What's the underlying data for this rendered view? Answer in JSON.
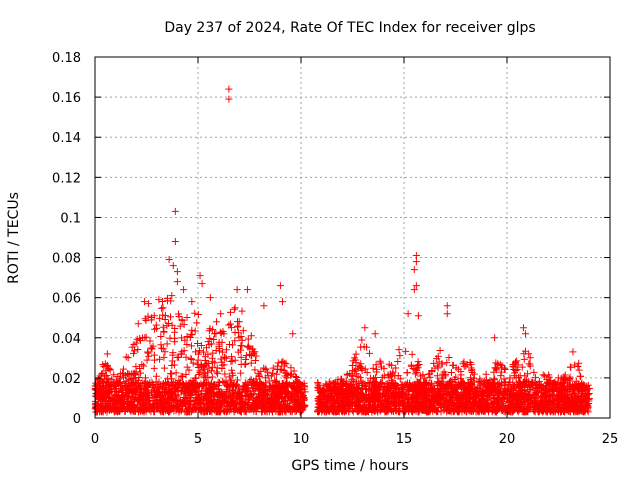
{
  "chart_data": {
    "type": "scatter",
    "title": "Day 237 of 2024, Rate Of TEC Index for receiver glps",
    "xlabel": "GPS time / hours",
    "ylabel": "ROTI / TECUs",
    "xlim": [
      0,
      25
    ],
    "ylim": [
      0,
      0.18
    ],
    "xticks": [
      0,
      5,
      10,
      15,
      20,
      25
    ],
    "yticks": [
      0,
      0.02,
      0.04,
      0.06,
      0.08,
      0.1,
      0.12,
      0.14,
      0.16,
      0.18
    ],
    "grid": true,
    "marker": "+",
    "color": "#ff0000",
    "baseline_band": {
      "x_start": 0,
      "x_end": 24,
      "gap": [
        10.2,
        10.8
      ],
      "y_low": 0.003,
      "y_high": 0.018
    },
    "envelope": [
      [
        0.0,
        0.018
      ],
      [
        0.5,
        0.03
      ],
      [
        1.0,
        0.025
      ],
      [
        1.5,
        0.032
      ],
      [
        2.0,
        0.038
      ],
      [
        2.5,
        0.055
      ],
      [
        3.0,
        0.05
      ],
      [
        3.5,
        0.065
      ],
      [
        4.0,
        0.06
      ],
      [
        4.5,
        0.05
      ],
      [
        5.0,
        0.055
      ],
      [
        5.5,
        0.045
      ],
      [
        6.0,
        0.045
      ],
      [
        6.5,
        0.055
      ],
      [
        7.0,
        0.06
      ],
      [
        7.5,
        0.045
      ],
      [
        8.0,
        0.025
      ],
      [
        8.5,
        0.025
      ],
      [
        9.0,
        0.03
      ],
      [
        9.5,
        0.028
      ],
      [
        10.0,
        0.015
      ],
      [
        10.5,
        0.0
      ],
      [
        11.0,
        0.015
      ],
      [
        11.5,
        0.018
      ],
      [
        12.0,
        0.02
      ],
      [
        12.5,
        0.028
      ],
      [
        13.0,
        0.04
      ],
      [
        13.5,
        0.03
      ],
      [
        14.0,
        0.028
      ],
      [
        14.5,
        0.03
      ],
      [
        15.0,
        0.04
      ],
      [
        15.5,
        0.035
      ],
      [
        16.0,
        0.02
      ],
      [
        16.5,
        0.03
      ],
      [
        17.0,
        0.038
      ],
      [
        17.5,
        0.025
      ],
      [
        18.0,
        0.03
      ],
      [
        18.5,
        0.028
      ],
      [
        19.0,
        0.025
      ],
      [
        19.5,
        0.028
      ],
      [
        20.0,
        0.025
      ],
      [
        20.5,
        0.03
      ],
      [
        21.0,
        0.035
      ],
      [
        21.5,
        0.022
      ],
      [
        22.0,
        0.022
      ],
      [
        22.5,
        0.02
      ],
      [
        23.0,
        0.025
      ],
      [
        23.5,
        0.028
      ],
      [
        24.0,
        0.015
      ]
    ],
    "outliers": [
      [
        6.5,
        0.164
      ],
      [
        6.5,
        0.159
      ],
      [
        3.9,
        0.103
      ],
      [
        3.9,
        0.088
      ],
      [
        3.6,
        0.079
      ],
      [
        3.8,
        0.076
      ],
      [
        4.0,
        0.073
      ],
      [
        4.3,
        0.064
      ],
      [
        4.0,
        0.068
      ],
      [
        5.1,
        0.071
      ],
      [
        5.2,
        0.067
      ],
      [
        5.6,
        0.06
      ],
      [
        6.9,
        0.064
      ],
      [
        7.4,
        0.064
      ],
      [
        8.2,
        0.056
      ],
      [
        9.0,
        0.066
      ],
      [
        9.1,
        0.058
      ],
      [
        9.6,
        0.042
      ],
      [
        2.4,
        0.058
      ],
      [
        2.6,
        0.057
      ],
      [
        2.1,
        0.047
      ],
      [
        3.1,
        0.059
      ],
      [
        3.3,
        0.055
      ],
      [
        15.6,
        0.081
      ],
      [
        15.6,
        0.078
      ],
      [
        15.5,
        0.074
      ],
      [
        15.6,
        0.066
      ],
      [
        15.5,
        0.064
      ],
      [
        15.2,
        0.052
      ],
      [
        15.7,
        0.051
      ],
      [
        17.1,
        0.056
      ],
      [
        17.1,
        0.052
      ],
      [
        13.1,
        0.045
      ],
      [
        13.6,
        0.042
      ],
      [
        19.4,
        0.04
      ],
      [
        20.8,
        0.045
      ],
      [
        20.9,
        0.042
      ],
      [
        23.2,
        0.033
      ],
      [
        0.6,
        0.032
      ],
      [
        12.6,
        0.03
      ],
      [
        6.1,
        0.052
      ],
      [
        6.8,
        0.055
      ],
      [
        7.0,
        0.048
      ],
      [
        4.7,
        0.058
      ],
      [
        5.9,
        0.048
      ]
    ]
  }
}
